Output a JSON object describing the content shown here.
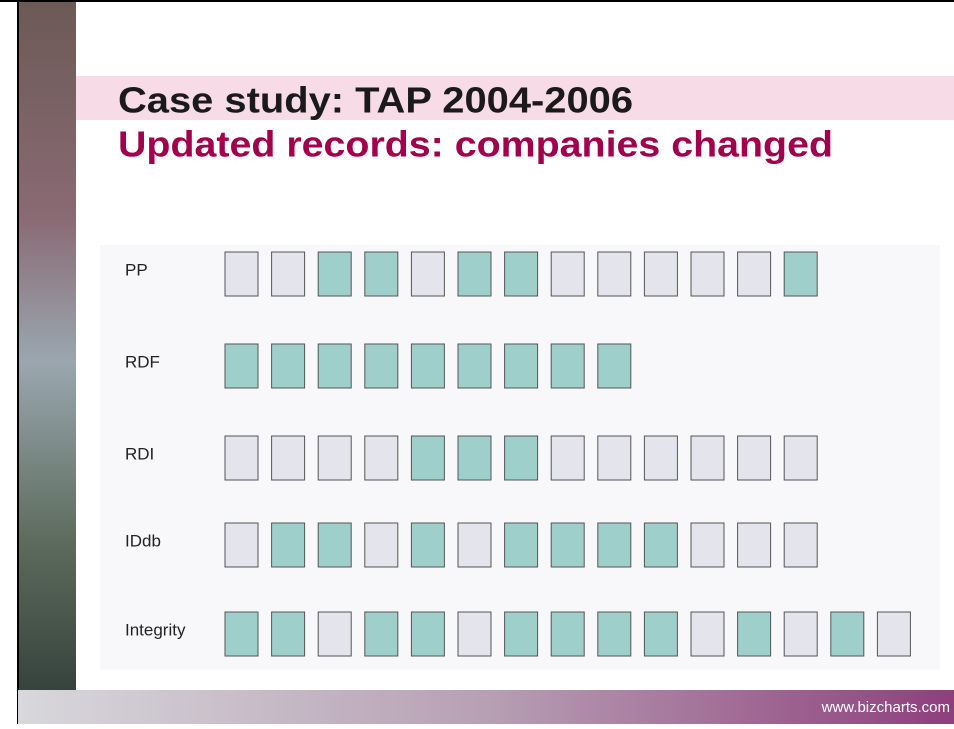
{
  "header": {
    "title": "Case study: TAP 2004-2006",
    "subtitle": "Updated records: companies changed"
  },
  "colors": {
    "0": "#e4e4ec",
    "1": "#9fcfca"
  },
  "rows": [
    {
      "label": "PP",
      "cells": [
        0,
        0,
        1,
        1,
        0,
        1,
        1,
        0,
        0,
        0,
        0,
        0,
        1
      ]
    },
    {
      "label": "RDF",
      "cells": [
        1,
        1,
        1,
        1,
        1,
        1,
        1,
        1,
        1
      ]
    },
    {
      "label": "RDI",
      "cells": [
        0,
        0,
        0,
        0,
        1,
        1,
        1,
        0,
        0,
        0,
        0,
        0,
        0
      ]
    },
    {
      "label": "IDdb",
      "cells": [
        0,
        1,
        1,
        0,
        1,
        0,
        1,
        1,
        1,
        1,
        0,
        0,
        0
      ]
    },
    {
      "label": "Integrity",
      "cells": [
        1,
        1,
        0,
        1,
        1,
        0,
        1,
        1,
        1,
        1,
        0,
        1,
        0,
        1,
        0
      ]
    }
  ],
  "footer": "www.bizcharts.com"
}
